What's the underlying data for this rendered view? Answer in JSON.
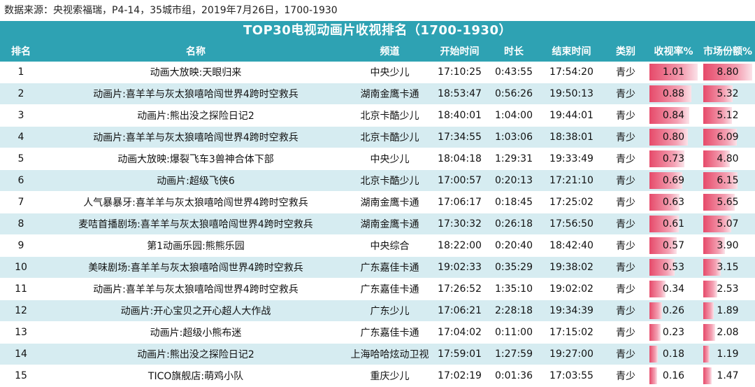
{
  "source": "数据来源：央视索福瑞，P4-14，35城市组，2019年7月26日，1700-1930",
  "title": "TOP30电视动画片收视排名（1700-1930）",
  "headers": [
    "排名",
    "名称",
    "频道",
    "开始时间",
    "时长",
    "结束时间",
    "类别",
    "收视率%",
    "市场份额%"
  ],
  "colors": {
    "header_bg": "#2ea2b3",
    "row_alt": "#d6ecf1",
    "bar": "#e64a6a"
  },
  "bar_max": {
    "rating": 1.01,
    "share": 8.8
  },
  "rows": [
    {
      "rank": "1",
      "name": "动画大放映:天眼归来",
      "channel": "中央少儿",
      "start": "17:10:25",
      "duration": "0:43:55",
      "end": "17:54:20",
      "category": "青少",
      "rating": "1.01",
      "share": "8.80"
    },
    {
      "rank": "2",
      "name": "动画片:喜羊羊与灰太狼嘻哈闯世界4跨时空救兵",
      "channel": "湖南金鹰卡通",
      "start": "18:53:47",
      "duration": "0:56:26",
      "end": "19:50:13",
      "category": "青少",
      "rating": "0.88",
      "share": "5.32"
    },
    {
      "rank": "3",
      "name": "动画片:熊出没之探险日记2",
      "channel": "北京卡酷少儿",
      "start": "18:40:01",
      "duration": "1:04:00",
      "end": "19:44:01",
      "category": "青少",
      "rating": "0.84",
      "share": "5.12"
    },
    {
      "rank": "4",
      "name": "动画片:喜羊羊与灰太狼嘻哈闯世界4跨时空救兵",
      "channel": "北京卡酷少儿",
      "start": "17:34:55",
      "duration": "1:03:06",
      "end": "18:38:01",
      "category": "青少",
      "rating": "0.80",
      "share": "6.09"
    },
    {
      "rank": "5",
      "name": "动画大放映:爆裂飞车3兽神合体下部",
      "channel": "中央少儿",
      "start": "18:04:18",
      "duration": "1:29:31",
      "end": "19:33:49",
      "category": "青少",
      "rating": "0.73",
      "share": "4.80"
    },
    {
      "rank": "6",
      "name": "动画片:超级飞侠6",
      "channel": "北京卡酷少儿",
      "start": "17:00:57",
      "duration": "0:20:13",
      "end": "17:21:10",
      "category": "青少",
      "rating": "0.69",
      "share": "6.15"
    },
    {
      "rank": "7",
      "name": "人气暴暴牙:喜羊羊与灰太狼嘻哈闯世界4跨时空救兵",
      "channel": "湖南金鹰卡通",
      "start": "17:06:17",
      "duration": "0:18:45",
      "end": "17:25:02",
      "category": "青少",
      "rating": "0.63",
      "share": "5.65"
    },
    {
      "rank": "8",
      "name": "麦咭首播剧场:喜羊羊与灰太狼嘻哈闯世界4跨时空救兵",
      "channel": "湖南金鹰卡通",
      "start": "17:30:32",
      "duration": "0:26:18",
      "end": "17:56:50",
      "category": "青少",
      "rating": "0.61",
      "share": "5.07"
    },
    {
      "rank": "9",
      "name": "第1动画乐园:熊熊乐园",
      "channel": "中央综合",
      "start": "18:22:00",
      "duration": "0:20:40",
      "end": "18:42:40",
      "category": "青少",
      "rating": "0.57",
      "share": "3.90"
    },
    {
      "rank": "10",
      "name": "美味剧场:喜羊羊与灰太狼嘻哈闯世界4跨时空救兵",
      "channel": "广东嘉佳卡通",
      "start": "19:02:33",
      "duration": "0:35:29",
      "end": "19:38:02",
      "category": "青少",
      "rating": "0.53",
      "share": "3.15"
    },
    {
      "rank": "11",
      "name": "动画片:喜羊羊与灰太狼嘻哈闯世界4跨时空救兵",
      "channel": "广东嘉佳卡通",
      "start": "17:26:52",
      "duration": "1:35:10",
      "end": "19:02:02",
      "category": "青少",
      "rating": "0.34",
      "share": "2.53"
    },
    {
      "rank": "12",
      "name": "动画片:开心宝贝之开心超人大作战",
      "channel": "广东少儿",
      "start": "17:06:21",
      "duration": "2:28:18",
      "end": "19:34:39",
      "category": "青少",
      "rating": "0.26",
      "share": "1.89"
    },
    {
      "rank": "13",
      "name": "动画片:超级小熊布迷",
      "channel": "广东嘉佳卡通",
      "start": "17:04:02",
      "duration": "0:11:00",
      "end": "17:15:02",
      "category": "青少",
      "rating": "0.23",
      "share": "2.08"
    },
    {
      "rank": "14",
      "name": "动画片:熊出没之探险日记2",
      "channel": "上海哈哈炫动卫视",
      "start": "17:59:01",
      "duration": "1:27:59",
      "end": "19:27:00",
      "category": "青少",
      "rating": "0.18",
      "share": "1.19"
    },
    {
      "rank": "15",
      "name": "TICO旗舰店:萌鸡小队",
      "channel": "重庆少儿",
      "start": "17:02:19",
      "duration": "0:01:36",
      "end": "17:03:55",
      "category": "青少",
      "rating": "0.16",
      "share": "1.47"
    }
  ]
}
